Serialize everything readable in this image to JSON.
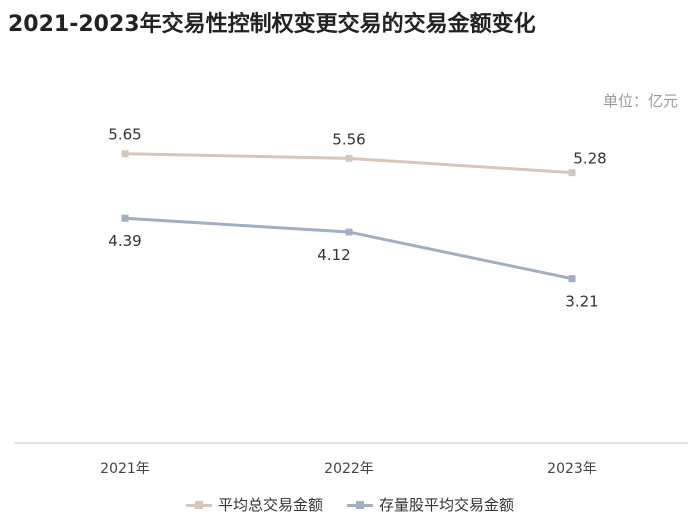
{
  "header": {
    "title": "2021-2023年交易性控制权变更交易的交易金额变化",
    "unit": "单位：亿元"
  },
  "chart_data": {
    "type": "line",
    "title": "2021-2023年交易性控制权变更交易的交易金额变化",
    "xlabel": "",
    "ylabel": "",
    "categories": [
      "2021年",
      "2022年",
      "2023年"
    ],
    "ylim": [
      0,
      8
    ],
    "grid": false,
    "legend_position": "bottom",
    "series": [
      {
        "name": "平均总交易金额",
        "values": [
          5.65,
          5.56,
          5.28
        ],
        "labels": [
          "5.65",
          "5.56",
          "5.28"
        ],
        "color": "#d9c6bb"
      },
      {
        "name": "存量股平均交易金额",
        "values": [
          4.39,
          4.12,
          3.21
        ],
        "labels": [
          "4.39",
          "4.12",
          "3.21"
        ],
        "color": "#a2aec4"
      }
    ]
  }
}
